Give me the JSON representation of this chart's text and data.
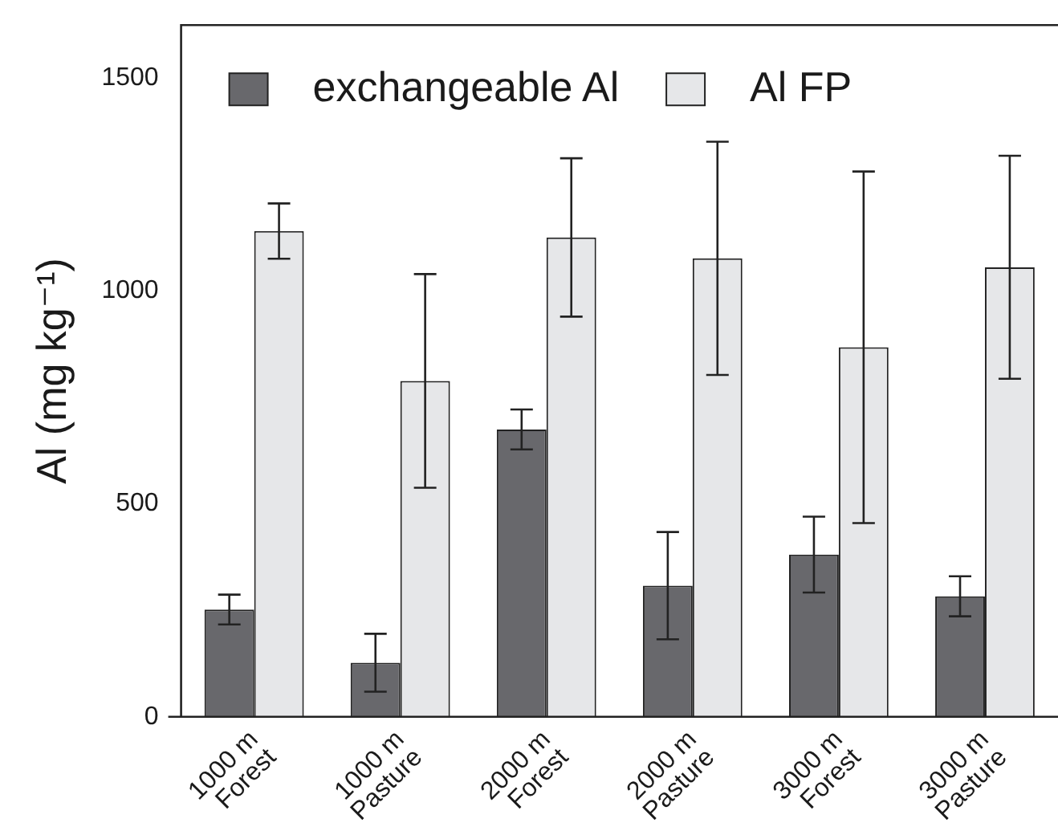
{
  "chart_data": {
    "type": "bar",
    "ylabel": "Al (mg kg⁻¹)",
    "categories": [
      "1000 m\nForest",
      "1000 m\nPasture",
      "2000 m\nForest",
      "2000 m\nPasture",
      "3000 m\nForest",
      "3000 m\nPasture"
    ],
    "series": [
      {
        "name": "exchangeable Al",
        "color": "#68686c",
        "values": [
          252,
          127,
          675,
          308,
          381,
          283
        ],
        "errors": [
          35,
          68,
          47,
          126,
          89,
          47
        ]
      },
      {
        "name": "Al FP",
        "color": "#e6e7e9",
        "values": [
          1141,
          789,
          1126,
          1077,
          868,
          1056
        ],
        "errors": [
          65,
          251,
          186,
          274,
          413,
          262
        ]
      }
    ],
    "ylim": [
      0,
      1625
    ],
    "yticks": [
      0,
      500,
      1000,
      1500
    ],
    "grid": false,
    "legend": "top left"
  }
}
